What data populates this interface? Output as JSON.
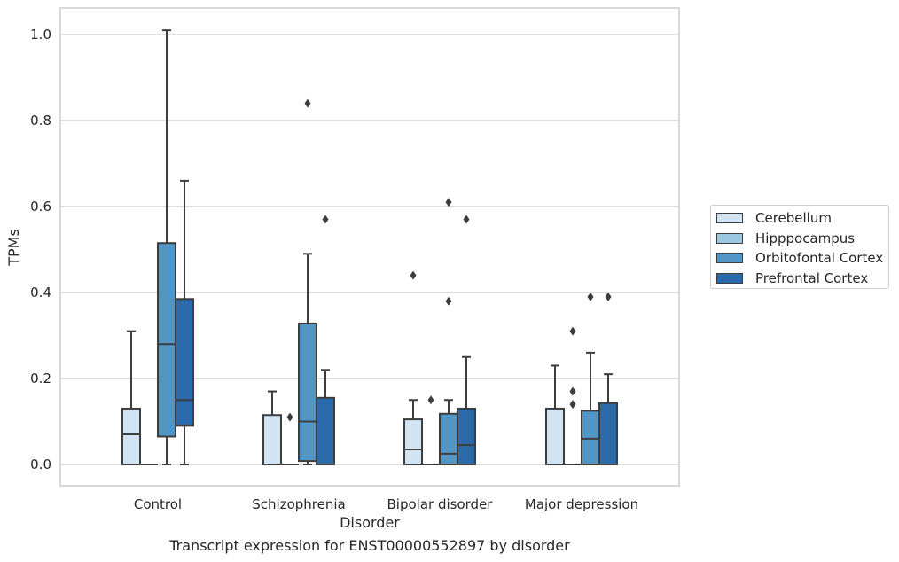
{
  "chart_data": {
    "type": "boxplot",
    "title": "",
    "caption": "Transcript expression for ENST00000552897 by disorder",
    "xlabel": "Disorder",
    "ylabel": "TPMs",
    "ylim": [
      -0.05,
      1.06
    ],
    "yticks": [
      0.0,
      0.2,
      0.4,
      0.6,
      0.8,
      1.0
    ],
    "ytick_labels": [
      "0.0",
      "0.2",
      "0.4",
      "0.6",
      "0.8",
      "1.0"
    ],
    "grid": true,
    "legend_position": "right",
    "categories": [
      "Control",
      "Schizophrenia",
      "Bipolar disorder",
      "Major depression"
    ],
    "series": [
      {
        "name": "Cerebellum",
        "color": "#d2e3f3",
        "boxes": [
          {
            "whislo": 0.0,
            "q1": 0.0,
            "med": 0.07,
            "q3": 0.13,
            "whishi": 0.31,
            "fliers": []
          },
          {
            "whislo": 0.0,
            "q1": 0.0,
            "med": 0.0,
            "q3": 0.115,
            "whishi": 0.17,
            "fliers": []
          },
          {
            "whislo": 0.0,
            "q1": 0.0,
            "med": 0.035,
            "q3": 0.105,
            "whishi": 0.15,
            "fliers": [
              0.44
            ]
          },
          {
            "whislo": 0.0,
            "q1": 0.0,
            "med": 0.0,
            "q3": 0.13,
            "whishi": 0.23,
            "fliers": []
          }
        ]
      },
      {
        "name": "Hipppocampus",
        "color": "#9ac8e0",
        "boxes": [
          {
            "whislo": 0.0,
            "q1": 0.0,
            "med": 0.0,
            "q3": 0.0,
            "whishi": 0.0,
            "fliers": []
          },
          {
            "whislo": 0.0,
            "q1": 0.0,
            "med": 0.0,
            "q3": 0.0,
            "whishi": 0.0,
            "fliers": [
              0.11
            ]
          },
          {
            "whislo": 0.0,
            "q1": 0.0,
            "med": 0.0,
            "q3": 0.0,
            "whishi": 0.0,
            "fliers": [
              0.15
            ]
          },
          {
            "whislo": 0.0,
            "q1": 0.0,
            "med": 0.0,
            "q3": 0.0,
            "whishi": 0.0,
            "fliers": [
              0.14,
              0.17,
              0.31
            ]
          }
        ]
      },
      {
        "name": "Orbitofontal Cortex",
        "color": "#5296c6",
        "boxes": [
          {
            "whislo": 0.0,
            "q1": 0.065,
            "med": 0.28,
            "q3": 0.515,
            "whishi": 1.01,
            "fliers": []
          },
          {
            "whislo": 0.0,
            "q1": 0.008,
            "med": 0.1,
            "q3": 0.328,
            "whishi": 0.49,
            "fliers": [
              0.84
            ]
          },
          {
            "whislo": 0.0,
            "q1": 0.0,
            "med": 0.025,
            "q3": 0.118,
            "whishi": 0.15,
            "fliers": [
              0.38,
              0.61
            ]
          },
          {
            "whislo": 0.0,
            "q1": 0.0,
            "med": 0.06,
            "q3": 0.125,
            "whishi": 0.26,
            "fliers": [
              0.39
            ]
          }
        ]
      },
      {
        "name": "Prefrontal Cortex",
        "color": "#2b6aab",
        "boxes": [
          {
            "whislo": 0.0,
            "q1": 0.09,
            "med": 0.15,
            "q3": 0.385,
            "whishi": 0.66,
            "fliers": []
          },
          {
            "whislo": 0.0,
            "q1": 0.0,
            "med": 0.0,
            "q3": 0.155,
            "whishi": 0.22,
            "fliers": [
              0.57
            ]
          },
          {
            "whislo": 0.0,
            "q1": 0.0,
            "med": 0.045,
            "q3": 0.13,
            "whishi": 0.25,
            "fliers": [
              0.57
            ]
          },
          {
            "whislo": 0.0,
            "q1": 0.0,
            "med": 0.0,
            "q3": 0.143,
            "whishi": 0.21,
            "fliers": [
              0.39
            ]
          }
        ]
      }
    ]
  }
}
